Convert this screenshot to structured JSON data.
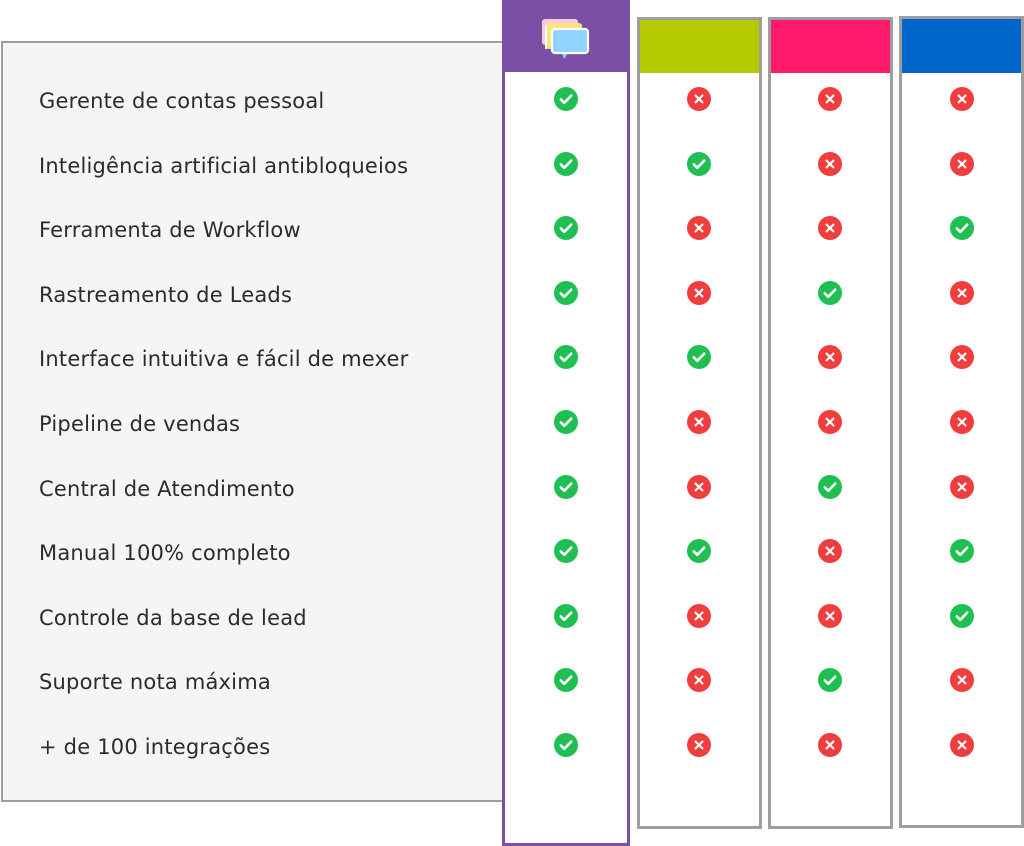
{
  "features": [
    "Gerente de contas pessoal",
    "Inteligência artificial antibloqueios",
    "Ferramenta de Workflow",
    "Rastreamento de Leads",
    "Interface intuitiva e fácil de mexer",
    "Pipeline de vendas",
    "Central de Atendimento",
    "Manual 100% completo",
    "Controle da base de lead",
    "Suporte nota máxima",
    "+ de 100 integrações"
  ],
  "columns": [
    {
      "id": "featured",
      "header_color": "#7b4fa6",
      "header_icon": "chat-bubbles-logo-icon",
      "values": [
        true,
        true,
        true,
        true,
        true,
        true,
        true,
        true,
        true,
        true,
        true
      ]
    },
    {
      "id": "competitor-green",
      "header_color": "#b5c900",
      "values": [
        false,
        true,
        false,
        false,
        true,
        false,
        false,
        true,
        false,
        false,
        false
      ]
    },
    {
      "id": "competitor-pink",
      "header_color": "#ff1a6b",
      "values": [
        false,
        false,
        false,
        true,
        false,
        false,
        true,
        false,
        false,
        true,
        false
      ]
    },
    {
      "id": "competitor-blue",
      "header_color": "#0066cc",
      "values": [
        false,
        false,
        true,
        false,
        false,
        false,
        false,
        true,
        true,
        false,
        false
      ]
    }
  ],
  "colors": {
    "check": "#1fbf52",
    "cross": "#f03d3d",
    "featured_border": "#7b4fa6",
    "column_border": "#9e9e9e"
  }
}
